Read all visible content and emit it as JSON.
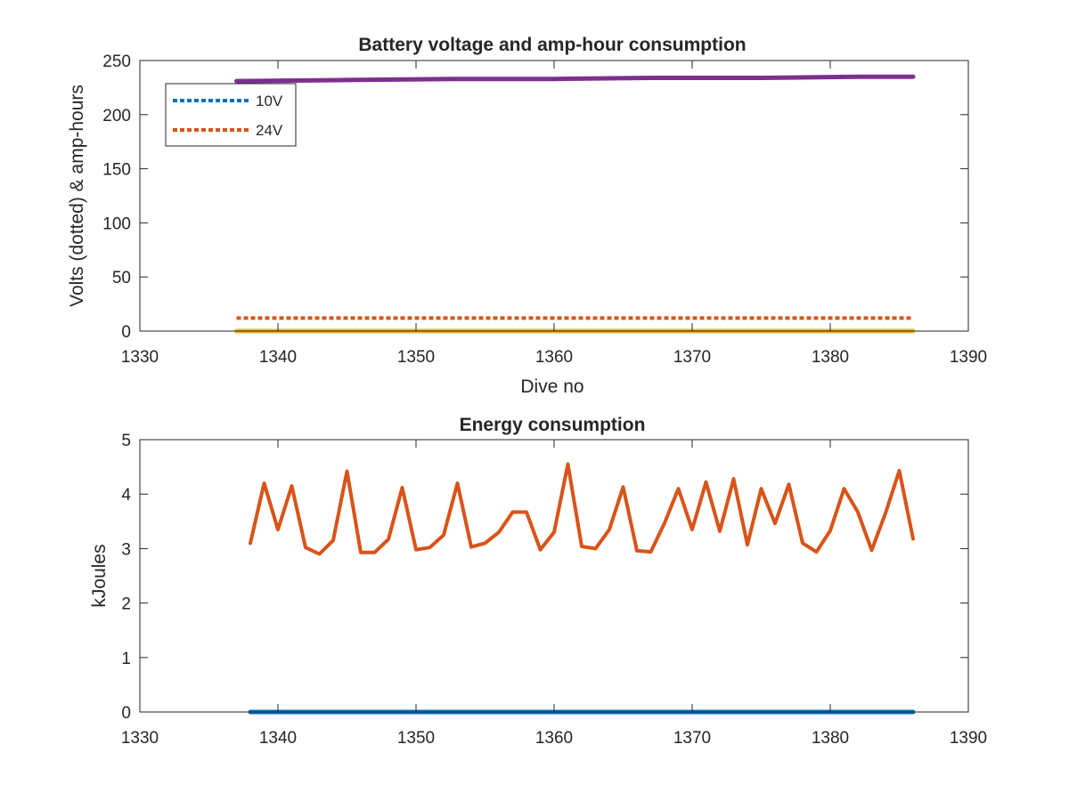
{
  "chart_data": [
    {
      "type": "line",
      "title": "Battery voltage and amp-hour consumption",
      "xlabel": "Dive no",
      "ylabel": "Volts (dotted) & amp-hours",
      "xlim": [
        1330,
        1390
      ],
      "ylim": [
        0,
        250
      ],
      "xticks": [
        "1330",
        "1340",
        "1350",
        "1360",
        "1370",
        "1380",
        "1390"
      ],
      "yticks": [
        "0",
        "50",
        "100",
        "150",
        "200",
        "250"
      ],
      "grid": false,
      "legend": {
        "placement": "top-left",
        "entries": [
          "10V",
          "24V"
        ]
      },
      "series": [
        {
          "name": "10V",
          "style": "dotted",
          "color": "#0072BD",
          "x": [
            1337,
            1386
          ],
          "y": [
            0,
            0
          ]
        },
        {
          "name": "24V",
          "style": "dotted",
          "color": "#D95319",
          "x": [
            1337,
            1386
          ],
          "y": [
            12,
            12
          ]
        },
        {
          "style": "solid",
          "color": "#EDB120",
          "x": [
            1337,
            1386
          ],
          "y": [
            0,
            0
          ]
        },
        {
          "style": "solid",
          "color": "#7E2F8E",
          "x": [
            1337,
            1345,
            1353,
            1360,
            1367,
            1375,
            1382,
            1386
          ],
          "y": [
            231,
            232,
            233,
            233,
            234,
            234,
            235,
            235
          ]
        }
      ]
    },
    {
      "type": "line",
      "title": "Energy consumption",
      "xlabel": "",
      "ylabel": "kJoules",
      "xlim": [
        1330,
        1390
      ],
      "ylim": [
        0,
        5
      ],
      "xticks": [
        "1330",
        "1340",
        "1350",
        "1360",
        "1370",
        "1380",
        "1390"
      ],
      "yticks": [
        "0",
        "1",
        "2",
        "3",
        "4",
        "5"
      ],
      "grid": false,
      "series": [
        {
          "style": "solid",
          "color": "#0072BD",
          "x": [
            1338,
            1386
          ],
          "y": [
            0,
            0
          ]
        },
        {
          "style": "solid",
          "color": "#D95319",
          "x": [
            1338,
            1339,
            1340,
            1341,
            1342,
            1343,
            1344,
            1345,
            1346,
            1347,
            1348,
            1349,
            1350,
            1351,
            1352,
            1353,
            1354,
            1355,
            1356,
            1357,
            1358,
            1359,
            1360,
            1361,
            1362,
            1363,
            1364,
            1365,
            1366,
            1367,
            1368,
            1369,
            1370,
            1371,
            1372,
            1373,
            1374,
            1375,
            1376,
            1377,
            1378,
            1379,
            1380,
            1381,
            1382,
            1383,
            1384,
            1385,
            1386
          ],
          "y": [
            3.1,
            4.2,
            3.35,
            4.15,
            3.02,
            2.9,
            3.15,
            4.42,
            2.93,
            2.93,
            3.17,
            4.12,
            2.98,
            3.02,
            3.25,
            4.2,
            3.03,
            3.1,
            3.3,
            3.67,
            3.67,
            2.98,
            3.3,
            4.55,
            3.04,
            3.0,
            3.35,
            4.13,
            2.96,
            2.94,
            3.47,
            4.1,
            3.35,
            4.22,
            3.32,
            4.28,
            3.07,
            4.1,
            3.46,
            4.18,
            3.1,
            2.94,
            3.33,
            4.1,
            3.67,
            2.97,
            3.65,
            4.43,
            3.18
          ]
        }
      ]
    }
  ]
}
